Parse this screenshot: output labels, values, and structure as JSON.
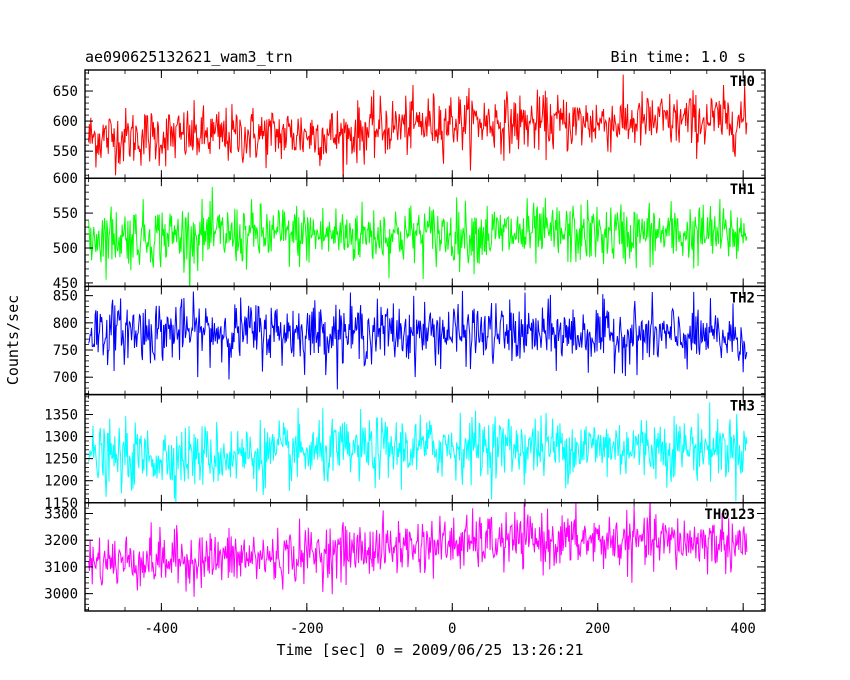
{
  "header": {
    "title": "ae090625132621_wam3_trn",
    "bin_time": "Bin time: 1.0 s"
  },
  "chart_data": {
    "type": "line",
    "title": "ae090625132621_wam3_trn",
    "xlabel": "Time [sec] 0 = 2009/06/25 13:26:21",
    "ylabel": "Counts/sec",
    "xlim": [
      -505,
      430
    ],
    "x_ticks": [
      -400,
      -200,
      0,
      200,
      400
    ],
    "bin_time_s": 1.0,
    "x_range_data": [
      -500,
      405
    ],
    "panels": [
      {
        "name": "TH0",
        "color": "#ff0000",
        "ylim": [
          505,
          685
        ],
        "y_ticks": [
          550,
          600,
          650
        ],
        "trend": [
          [
            -500,
            572
          ],
          [
            -200,
            578
          ],
          [
            -150,
            576
          ],
          [
            -100,
            588
          ],
          [
            0,
            600
          ],
          [
            100,
            596
          ],
          [
            405,
            602
          ]
        ],
        "noise": 24
      },
      {
        "name": "TH1",
        "color": "#00ff00",
        "ylim": [
          445,
          600
        ],
        "y_ticks": [
          450,
          500,
          550,
          600
        ],
        "trend": [
          [
            -500,
            517
          ],
          [
            0,
            520
          ],
          [
            405,
            520
          ]
        ],
        "noise": 22
      },
      {
        "name": "TH2",
        "color": "#0000ff",
        "ylim": [
          668,
          867
        ],
        "y_ticks": [
          700,
          750,
          800,
          850
        ],
        "trend": [
          [
            -500,
            785
          ],
          [
            0,
            782
          ],
          [
            405,
            772
          ]
        ],
        "noise": 28
      },
      {
        "name": "TH3",
        "color": "#00ffff",
        "ylim": [
          1150,
          1395
        ],
        "y_ticks": [
          1150,
          1200,
          1250,
          1300,
          1350
        ],
        "trend": [
          [
            -500,
            1250
          ],
          [
            -200,
            1262
          ],
          [
            0,
            1278
          ],
          [
            405,
            1275
          ]
        ],
        "noise": 36
      },
      {
        "name": "TH0123",
        "color": "#ff00ff",
        "ylim": [
          2935,
          3340
        ],
        "y_ticks": [
          3000,
          3100,
          3200,
          3300
        ],
        "trend": [
          [
            -500,
            3120
          ],
          [
            -250,
            3135
          ],
          [
            -50,
            3180
          ],
          [
            100,
            3200
          ],
          [
            405,
            3190
          ]
        ],
        "noise": 52
      }
    ]
  }
}
